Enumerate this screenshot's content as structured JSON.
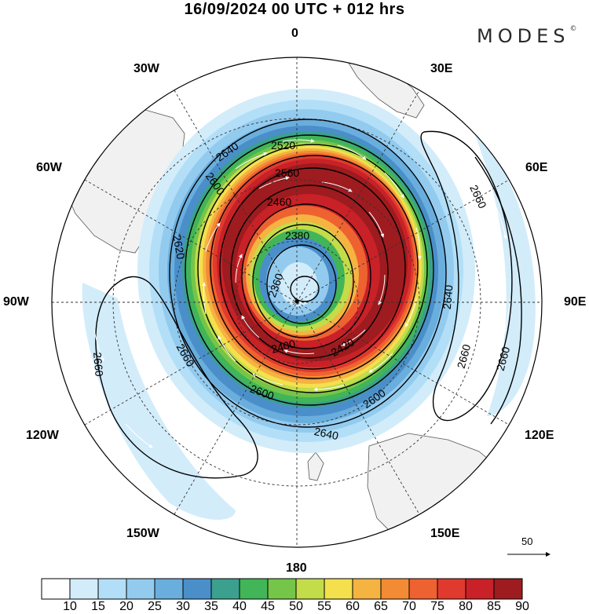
{
  "title": "16/09/2024  00 UTC  + 012 hrs",
  "brand": "MODES",
  "brand_mark": "©",
  "longitude_labels": {
    "lon_0": "0",
    "lon_30e": "30E",
    "lon_60e": "60E",
    "lon_90e": "90E",
    "lon_120e": "120E",
    "lon_150e": "150E",
    "lon_180": "180",
    "lon_150w": "150W",
    "lon_120w": "120W",
    "lon_90w": "90W",
    "lon_60w": "60W",
    "lon_30w": "30W"
  },
  "projection": "south polar stereographic",
  "contour_levels": [
    "2360",
    "2380",
    "2400",
    "2420",
    "2460",
    "2520",
    "2560",
    "2600",
    "2620",
    "2640",
    "2660"
  ],
  "wind_speed_colorbar": {
    "labels": [
      "10",
      "15",
      "20",
      "25",
      "30",
      "35",
      "40",
      "45",
      "50",
      "55",
      "60",
      "65",
      "70",
      "75",
      "80",
      "85",
      "90"
    ],
    "colors": [
      "#ffffff",
      "#d2ecfa",
      "#b2dff7",
      "#93cbef",
      "#6aaede",
      "#4a8fca",
      "#3ba08d",
      "#41b557",
      "#75c548",
      "#c2dc4a",
      "#f4e04d",
      "#f5b342",
      "#f38b34",
      "#ee6231",
      "#e03a2e",
      "#c82127",
      "#9e1b1f"
    ]
  },
  "vector_reference": "50",
  "colors": {
    "land": "#f1f1f1",
    "coast": "#555555",
    "contour": "#000000",
    "vectors": "#ffffff"
  }
}
